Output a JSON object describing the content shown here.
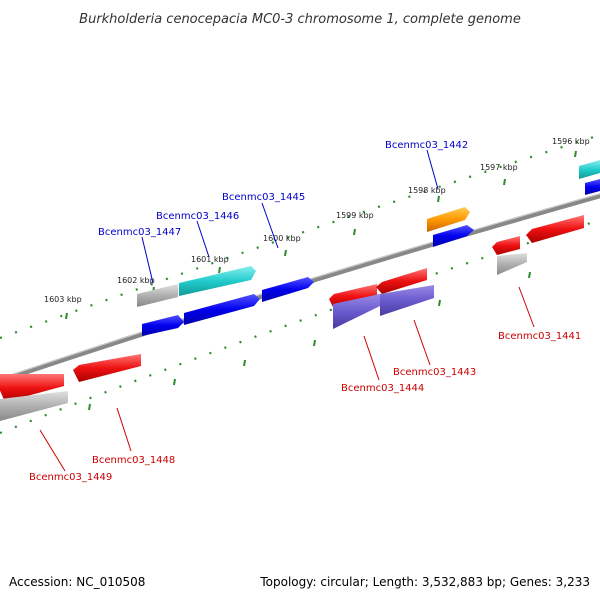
{
  "title": "Burkholderia cenocepacia MC0-3 chromosome 1, complete genome",
  "footer": {
    "accession": "Accession: NC_010508",
    "summary": "Topology: circular; Length: 3,532,883 bp; Genes: 3,233"
  },
  "scale_labels": [
    "1603 kbp",
    "1602 kbp",
    "1601 kbp",
    "1600 kbp",
    "1599 kbp",
    "1598 kbp",
    "1597 kbp",
    "1596 kbp"
  ],
  "gene_labels_top": [
    "Bcenmc03_1447",
    "Bcenmc03_1446",
    "Bcenmc03_1445",
    "Bcenmc03_1442"
  ],
  "gene_labels_bottom": [
    "Bcenmc03_1449",
    "Bcenmc03_1448",
    "Bcenmc03_1444",
    "Bcenmc03_1443",
    "Bcenmc03_1441"
  ],
  "colors": {
    "backbone": "#808080",
    "tick": "#2e8b2e",
    "red": "#ee1111",
    "blue": "#0000ee",
    "cyan": "#22cccc",
    "grey": "#b0b0b0",
    "orange": "#ff9900",
    "purple": "#6a5acd",
    "label_top": "#0000cc",
    "label_bottom": "#cc0000"
  }
}
